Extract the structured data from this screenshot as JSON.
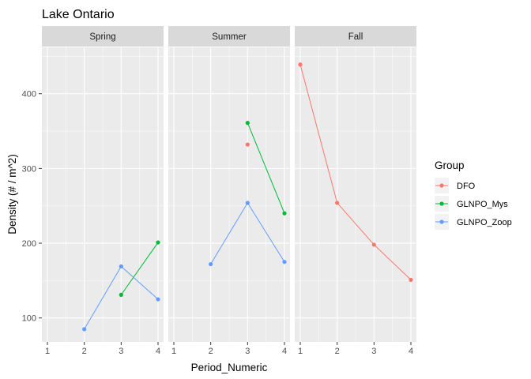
{
  "chart_data": {
    "type": "line",
    "title": "Lake Ontario",
    "xlabel": "Period_Numeric",
    "ylabel": "Density (# / m^2)",
    "xlim": [
      0.85,
      4.15
    ],
    "ylim": [
      68,
      462
    ],
    "x_ticks": [
      1,
      2,
      3,
      4
    ],
    "y_ticks": [
      100,
      200,
      300,
      400
    ],
    "grid": true,
    "legend": {
      "title": "Group",
      "placement": "right",
      "entries": [
        {
          "name": "DFO",
          "color": "#F8766D"
        },
        {
          "name": "GLNPO_Mys",
          "color": "#00BA38"
        },
        {
          "name": "GLNPO_Zoop",
          "color": "#619CFF"
        }
      ]
    },
    "facets": [
      {
        "label": "Spring",
        "series": [
          {
            "group": "GLNPO_Mys",
            "x": [
              3,
              4
            ],
            "y": [
              131,
              201
            ]
          },
          {
            "group": "GLNPO_Zoop",
            "x": [
              2,
              3,
              4
            ],
            "y": [
              85,
              169,
              125
            ]
          }
        ]
      },
      {
        "label": "Summer",
        "series": [
          {
            "group": "DFO",
            "x": [
              3
            ],
            "y": [
              332
            ]
          },
          {
            "group": "GLNPO_Mys",
            "x": [
              3,
              4
            ],
            "y": [
              361,
              240
            ]
          },
          {
            "group": "GLNPO_Zoop",
            "x": [
              2,
              3,
              4
            ],
            "y": [
              172,
              254,
              175
            ]
          }
        ]
      },
      {
        "label": "Fall",
        "series": [
          {
            "group": "DFO",
            "x": [
              1,
              2,
              3,
              4
            ],
            "y": [
              439,
              254,
              198,
              151
            ]
          }
        ]
      }
    ]
  },
  "colors": {
    "panel_background": "#EBEBEB",
    "strip_background": "#D9D9D9",
    "grid_major": "#FFFFFF",
    "axis_ticks": "#333333"
  }
}
